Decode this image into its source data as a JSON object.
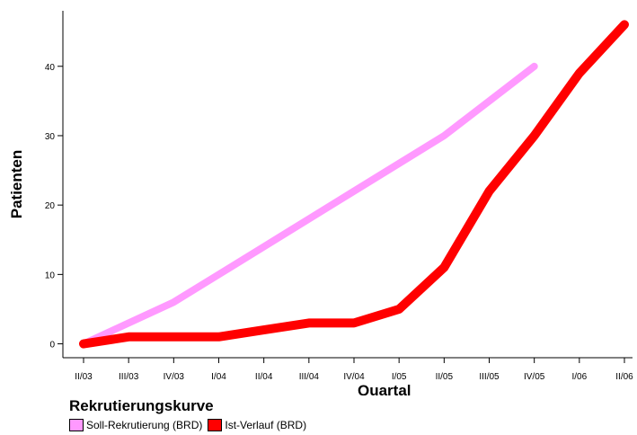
{
  "chart_data": {
    "type": "line",
    "xlabel": "Quartal",
    "ylabel": "Patienten",
    "categories": [
      "II/03",
      "III/03",
      "IV/03",
      "I/04",
      "II/04",
      "III/04",
      "IV/04",
      "I/05",
      "II/05",
      "III/05",
      "IV/05",
      "I/06",
      "II/06"
    ],
    "ylim": [
      -2,
      48
    ],
    "yticks": [
      0,
      10,
      20,
      30,
      40
    ],
    "grid": false,
    "legend_title": "Rekrutierungskurve",
    "legend_position": "bottom-left",
    "series": [
      {
        "name": "Soll-Rekrutierung (BRD)",
        "color": "#ff99ff",
        "values": [
          0,
          3,
          6,
          10,
          14,
          18,
          22,
          26,
          30,
          35,
          40,
          null,
          null
        ]
      },
      {
        "name": "Ist-Verlauf (BRD)",
        "color": "#ff0000",
        "values": [
          0,
          1,
          1,
          1,
          2,
          3,
          3,
          5,
          11,
          22,
          30,
          39,
          46
        ]
      }
    ]
  }
}
